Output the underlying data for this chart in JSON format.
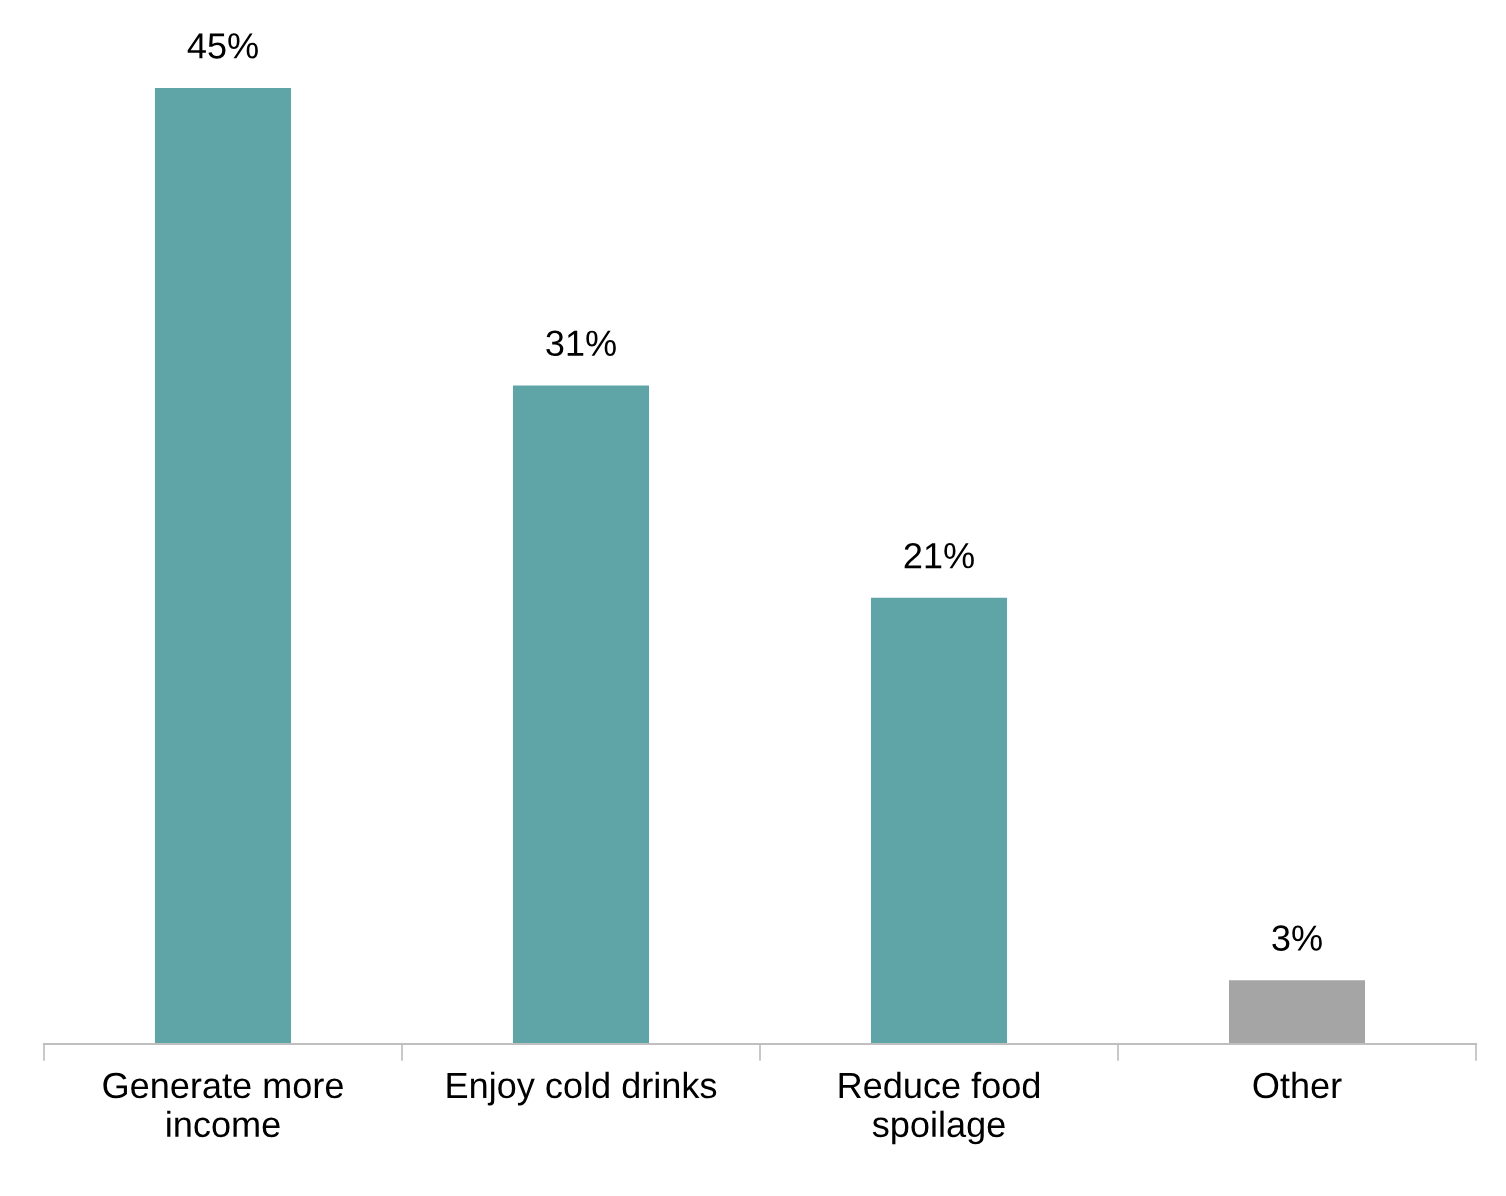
{
  "chart_data": {
    "type": "bar",
    "categories": [
      "Generate more\nincome",
      "Enjoy cold drinks",
      "Reduce food\nspoilage",
      "Other"
    ],
    "values": [
      45,
      31,
      21,
      3
    ],
    "colors": [
      "#5fa5a7",
      "#5fa5a7",
      "#5fa5a7",
      "#a5a5a5"
    ],
    "value_labels": [
      "45%",
      "31%",
      "21%",
      "3%"
    ],
    "grid": false,
    "legend": false,
    "tick_labels": "x"
  }
}
